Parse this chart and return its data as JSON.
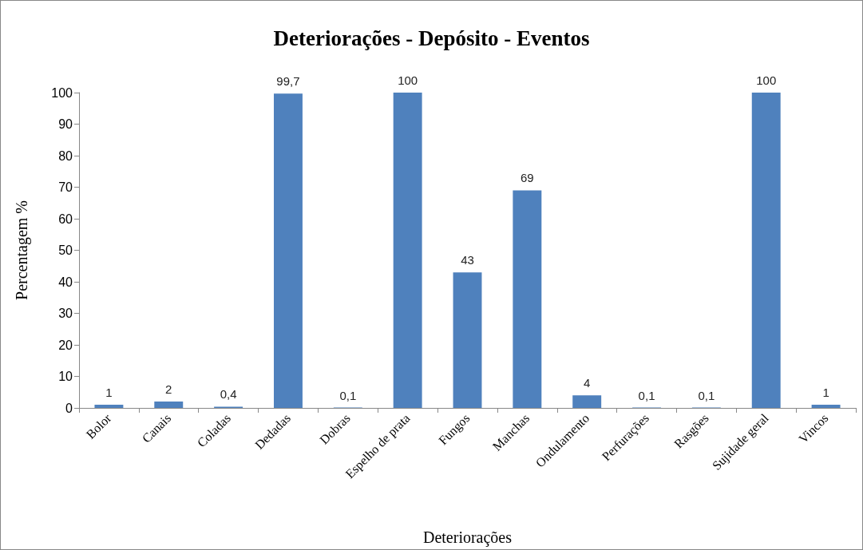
{
  "chart_data": {
    "type": "bar",
    "title": "Deteriorações - Depósito - Eventos",
    "xlabel": "Deteriorações",
    "ylabel": "Percentagem %",
    "categories": [
      "Bolor",
      "Canais",
      "Coladas",
      "Dedadas",
      "Dobras",
      "Espelho de prata",
      "Fungos",
      "Manchas",
      "Ondulamento",
      "Perfurações",
      "Rasgões",
      "Sujidade geral",
      "Vincos"
    ],
    "values": [
      1,
      2,
      0.4,
      99.7,
      0.1,
      100,
      43,
      69,
      4,
      0.1,
      0.1,
      100,
      1
    ],
    "value_labels": [
      "1",
      "2",
      "0,4",
      "99,7",
      "0,1",
      "100",
      "43",
      "69",
      "4",
      "0,1",
      "0,1",
      "100",
      "1"
    ],
    "color": "#4f81bd",
    "ylim": [
      0,
      100
    ],
    "yticks": [
      0,
      10,
      20,
      30,
      40,
      50,
      60,
      70,
      80,
      90,
      100
    ],
    "grid": false
  }
}
